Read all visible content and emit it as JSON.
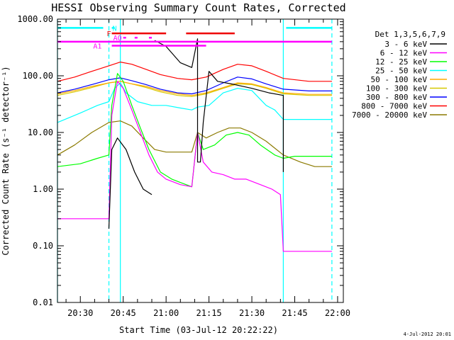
{
  "chart_data": {
    "type": "line",
    "title": "HESSI Observing Summary Count Rates, Corrected",
    "xlabel": "Start Time (03-Jul-12 20:22:22)",
    "ylabel": "Corrected Count Rate (s⁻¹ detector⁻¹)",
    "yscale": "log",
    "ylim": [
      0.01,
      1000
    ],
    "xlim": [
      "20:22",
      "22:02"
    ],
    "x_ticks": [
      "20:30",
      "20:45",
      "21:00",
      "21:15",
      "21:30",
      "21:45",
      "22:00"
    ],
    "y_ticks": [
      "0.01",
      "0.10",
      "1.00",
      "10.00",
      "100.00",
      "1000.00"
    ],
    "legend_title": "Det 1,3,5,6,7,9",
    "legend_position": "right",
    "timestamp": "4-Jul-2012 20:01",
    "series": [
      {
        "name": "3 - 6 keV",
        "color": "#000000",
        "points": [
          [
            "20:40",
            0.2
          ],
          [
            "20:41",
            5
          ],
          [
            "20:43",
            8
          ],
          [
            "20:46",
            5
          ],
          [
            "20:49",
            2
          ],
          [
            "20:52",
            1
          ],
          [
            "20:55",
            0.8
          ]
        ]
      },
      {
        "name": "3 - 6 keV",
        "color": "#000000",
        "points": [
          [
            "20:56",
            420
          ],
          [
            "21:00",
            330
          ],
          [
            "21:05",
            170
          ],
          [
            "21:09",
            140
          ],
          [
            "21:11",
            450
          ],
          [
            "21:11",
            3
          ],
          [
            "21:12",
            3
          ],
          [
            "21:13",
            15
          ],
          [
            "21:15",
            120
          ],
          [
            "21:18",
            80
          ],
          [
            "21:24",
            70
          ],
          [
            "21:30",
            60
          ],
          [
            "21:36",
            50
          ],
          [
            "21:41",
            45
          ],
          [
            "21:41",
            2
          ]
        ]
      },
      {
        "name": "6 - 12 keV",
        "color": "#ff00ff",
        "points": [
          [
            "20:22",
            0.3
          ],
          [
            "20:30",
            0.3
          ],
          [
            "20:36",
            0.3
          ],
          [
            "20:40",
            0.3
          ],
          [
            "20:41",
            20
          ],
          [
            "20:43",
            80
          ],
          [
            "20:45",
            60
          ],
          [
            "20:48",
            25
          ],
          [
            "20:51",
            10
          ],
          [
            "20:54",
            4
          ],
          [
            "20:57",
            2
          ],
          [
            "21:00",
            1.5
          ],
          [
            "21:05",
            1.2
          ],
          [
            "21:09",
            1.1
          ],
          [
            "21:11",
            10
          ],
          [
            "21:13",
            3
          ],
          [
            "21:16",
            2
          ],
          [
            "21:20",
            1.8
          ],
          [
            "21:24",
            1.5
          ],
          [
            "21:28",
            1.5
          ],
          [
            "21:33",
            1.2
          ],
          [
            "21:37",
            1
          ],
          [
            "21:40",
            0.8
          ],
          [
            "21:41",
            0.08
          ],
          [
            "21:55",
            0.08
          ],
          [
            "21:58",
            0.08
          ]
        ]
      },
      {
        "name": "12 - 25 keV",
        "color": "#00ff00",
        "points": [
          [
            "20:22",
            2.5
          ],
          [
            "20:30",
            2.8
          ],
          [
            "20:36",
            3.5
          ],
          [
            "20:40",
            4
          ],
          [
            "20:41",
            30
          ],
          [
            "20:43",
            110
          ],
          [
            "20:45",
            80
          ],
          [
            "20:48",
            30
          ],
          [
            "20:51",
            12
          ],
          [
            "20:54",
            5
          ],
          [
            "20:58",
            2
          ],
          [
            "21:02",
            1.5
          ],
          [
            "21:07",
            1.2
          ],
          [
            "21:09",
            1.1
          ],
          [
            "21:11",
            10
          ],
          [
            "21:13",
            5
          ],
          [
            "21:17",
            6
          ],
          [
            "21:21",
            9
          ],
          [
            "21:25",
            10
          ],
          [
            "21:29",
            9
          ],
          [
            "21:33",
            6
          ],
          [
            "21:38",
            4
          ],
          [
            "21:41",
            3.5
          ],
          [
            "21:45",
            3.8
          ],
          [
            "21:50",
            3.8
          ],
          [
            "21:58",
            3.8
          ]
        ]
      },
      {
        "name": "25 - 50 keV",
        "color": "#00ffff",
        "points": [
          [
            "20:22",
            15
          ],
          [
            "20:30",
            22
          ],
          [
            "20:36",
            30
          ],
          [
            "20:40",
            35
          ],
          [
            "20:42",
            60
          ],
          [
            "20:44",
            75
          ],
          [
            "20:46",
            50
          ],
          [
            "20:50",
            35
          ],
          [
            "20:55",
            30
          ],
          [
            "21:00",
            30
          ],
          [
            "21:05",
            27
          ],
          [
            "21:09",
            25
          ],
          [
            "21:11",
            28
          ],
          [
            "21:15",
            30
          ],
          [
            "21:20",
            50
          ],
          [
            "21:25",
            60
          ],
          [
            "21:30",
            55
          ],
          [
            "21:35",
            30
          ],
          [
            "21:38",
            25
          ],
          [
            "21:41",
            17
          ],
          [
            "21:48",
            17
          ],
          [
            "21:58",
            17
          ]
        ]
      },
      {
        "name": "50 - 100 keV",
        "color": "#ffaa00",
        "points": [
          [
            "20:22",
            48
          ],
          [
            "20:28",
            55
          ],
          [
            "20:34",
            65
          ],
          [
            "20:40",
            75
          ],
          [
            "20:44",
            80
          ],
          [
            "20:48",
            72
          ],
          [
            "20:53",
            65
          ],
          [
            "20:58",
            55
          ],
          [
            "21:04",
            48
          ],
          [
            "21:09",
            45
          ],
          [
            "21:14",
            50
          ],
          [
            "21:20",
            62
          ],
          [
            "21:25",
            75
          ],
          [
            "21:30",
            72
          ],
          [
            "21:35",
            62
          ],
          [
            "21:41",
            50
          ],
          [
            "21:50",
            47
          ],
          [
            "21:58",
            47
          ]
        ]
      },
      {
        "name": "100 - 300 keV",
        "color": "#d6c800",
        "points": [
          [
            "20:22",
            45
          ],
          [
            "20:28",
            52
          ],
          [
            "20:34",
            62
          ],
          [
            "20:40",
            75
          ],
          [
            "20:44",
            80
          ],
          [
            "20:48",
            72
          ],
          [
            "20:53",
            62
          ],
          [
            "20:58",
            52
          ],
          [
            "21:04",
            45
          ],
          [
            "21:09",
            43
          ],
          [
            "21:14",
            48
          ],
          [
            "21:20",
            60
          ],
          [
            "21:25",
            72
          ],
          [
            "21:30",
            70
          ],
          [
            "21:35",
            60
          ],
          [
            "21:41",
            48
          ],
          [
            "21:50",
            45
          ],
          [
            "21:58",
            45
          ]
        ]
      },
      {
        "name": "300 - 800 keV",
        "color": "#0000ff",
        "points": [
          [
            "20:22",
            50
          ],
          [
            "20:28",
            58
          ],
          [
            "20:34",
            70
          ],
          [
            "20:40",
            85
          ],
          [
            "20:44",
            92
          ],
          [
            "20:48",
            82
          ],
          [
            "20:53",
            70
          ],
          [
            "20:58",
            58
          ],
          [
            "21:04",
            50
          ],
          [
            "21:09",
            48
          ],
          [
            "21:14",
            55
          ],
          [
            "21:20",
            75
          ],
          [
            "21:25",
            95
          ],
          [
            "21:30",
            88
          ],
          [
            "21:35",
            72
          ],
          [
            "21:41",
            58
          ],
          [
            "21:50",
            54
          ],
          [
            "21:58",
            54
          ]
        ]
      },
      {
        "name": "800 - 7000 keV",
        "color": "#ff0000",
        "points": [
          [
            "20:22",
            80
          ],
          [
            "20:28",
            95
          ],
          [
            "20:34",
            120
          ],
          [
            "20:40",
            150
          ],
          [
            "20:44",
            175
          ],
          [
            "20:48",
            160
          ],
          [
            "20:53",
            130
          ],
          [
            "20:58",
            105
          ],
          [
            "21:04",
            90
          ],
          [
            "21:09",
            85
          ],
          [
            "21:14",
            95
          ],
          [
            "21:20",
            130
          ],
          [
            "21:25",
            160
          ],
          [
            "21:30",
            150
          ],
          [
            "21:35",
            120
          ],
          [
            "21:41",
            90
          ],
          [
            "21:50",
            80
          ],
          [
            "21:58",
            80
          ]
        ]
      },
      {
        "name": "7000 - 20000 keV",
        "color": "#8b7a00",
        "points": [
          [
            "20:22",
            4
          ],
          [
            "20:28",
            6
          ],
          [
            "20:34",
            10
          ],
          [
            "20:40",
            15
          ],
          [
            "20:44",
            16
          ],
          [
            "20:48",
            13
          ],
          [
            "20:52",
            8
          ],
          [
            "20:56",
            5
          ],
          [
            "21:00",
            4.5
          ],
          [
            "21:05",
            4.5
          ],
          [
            "21:09",
            4.5
          ],
          [
            "21:11",
            10
          ],
          [
            "21:14",
            8
          ],
          [
            "21:18",
            10
          ],
          [
            "21:22",
            12
          ],
          [
            "21:26",
            12
          ],
          [
            "21:30",
            10
          ],
          [
            "21:35",
            7
          ],
          [
            "21:41",
            4
          ],
          [
            "21:47",
            3
          ],
          [
            "21:52",
            2.5
          ],
          [
            "21:58",
            2.5
          ]
        ]
      }
    ],
    "flag_bars": [
      {
        "label": "N",
        "color": "#00ffff",
        "value": 700,
        "segments": [
          [
            "20:22",
            "20:38"
          ],
          [
            "20:41",
            "20:42"
          ],
          [
            "21:42",
            "21:58"
          ]
        ],
        "label_at": "20:42"
      },
      {
        "label": "F",
        "color": "#ee0000",
        "value": 560,
        "segments": [
          [
            "20:41",
            "21:00"
          ],
          [
            "21:07",
            "21:24"
          ]
        ],
        "label_at": "20:40"
      },
      {
        "label": "AO",
        "color": "#ff00ff",
        "value": 470,
        "segments": [
          [
            "20:45",
            "20:46"
          ],
          [
            "20:49",
            "20:50"
          ],
          [
            "20:54",
            "20:55"
          ]
        ],
        "label_at": "20:43"
      },
      {
        "label": "",
        "color": "#ff00ff",
        "value": 400,
        "segments": [
          [
            "20:22",
            "21:58"
          ]
        ],
        "label_at": ""
      },
      {
        "label": "A1",
        "color": "#ff00ff",
        "value": 340,
        "segments": [
          [
            "20:41",
            "21:11"
          ],
          [
            "21:11",
            "21:14"
          ]
        ],
        "label_at": "20:36"
      }
    ],
    "vlines": [
      {
        "color": "#00ffff",
        "style": "solid",
        "x": [
          "20:22",
          "20:44",
          "21:41"
        ]
      },
      {
        "color": "#00ffff",
        "style": "dashed",
        "x": [
          "20:40",
          "21:58"
        ]
      }
    ]
  }
}
